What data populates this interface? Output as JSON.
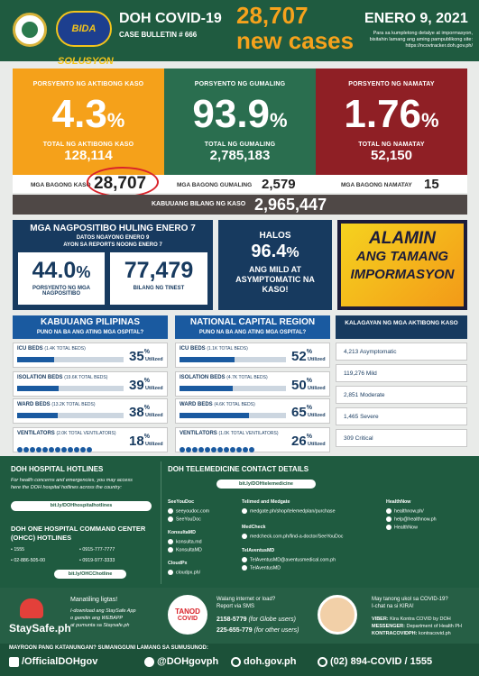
{
  "header": {
    "title": "DOH COVID-19",
    "bulletin": "CASE BULLETIN # 666",
    "new_cases_count": "28,707",
    "new_cases_label": "new cases",
    "date": "ENERO 9, 2021",
    "note1": "Para sa kumpletong detalye at impormasyon,",
    "note2": "bisitahin lamang ang aming pampublikong site:",
    "url": "https://ncovtracker.doh.gov.ph/",
    "bida_logo": "BIDA SOLUSYON"
  },
  "active": {
    "label": "PORSYENTO NG AKTIBONG KASO",
    "percent": "4.3",
    "pct_sign": "%",
    "total_label": "TOTAL NG AKTIBONG KASO",
    "total": "128,114",
    "color": "#f5a11a"
  },
  "recovered": {
    "label": "PORSYENTO NG GUMALING",
    "percent": "93.9",
    "pct_sign": "%",
    "total_label": "TOTAL NG GUMALING",
    "total": "2,785,183",
    "color": "#2a6e4f"
  },
  "deaths": {
    "label": "PORSYENTO NG NAMATAY",
    "percent": "1.76",
    "pct_sign": "%",
    "total_label": "TOTAL NG NAMATAY",
    "total": "52,150",
    "color": "#8f1f25"
  },
  "new_cases": {
    "label": "MGA BAGONG KASO",
    "value": "28,707"
  },
  "new_recovered": {
    "label": "MGA BAGONG GUMALING",
    "value": "2,579"
  },
  "new_deaths": {
    "label": "MGA BAGONG NAMATAY",
    "value": "15"
  },
  "total_cases": {
    "label": "KABUUANG BILANG NG KASO",
    "value": "2,965,447"
  },
  "positives": {
    "title": "MGA NAGPOSITIBO HULING ENERO 7",
    "sub1": "DATOS NGAYONG ENERO 9",
    "sub2": "AYON SA REPORTS NOONG ENERO 7",
    "rate": "44.0",
    "rate_sign": "%",
    "rate_label": "PORSYENTO NG MGA NAGPOSITIBO",
    "tests": "77,479",
    "tests_label": "BILANG NG TINEST"
  },
  "mild": {
    "halos": "HALOS",
    "pct": "96.4",
    "pct_sign": "%",
    "text": "ANG MILD AT ASYMPTOMATIC NA KASO!"
  },
  "alamin": {
    "line1": "ALAMIN",
    "line2": "ANG TAMANG",
    "line3": "IMPORMASYON"
  },
  "ph": {
    "title": "KABUUANG PILIPINAS",
    "sub": "PUNO NA BA ANG ATING MGA OSPITAL?",
    "rows": [
      {
        "label": "ICU BEDS",
        "total": "(1.4K TOTAL BEDS)",
        "pct": "35",
        "fill": 0.35
      },
      {
        "label": "ISOLATION BEDS",
        "total": "(19.6K TOTAL BEDS)",
        "pct": "39",
        "fill": 0.39
      },
      {
        "label": "WARD BEDS",
        "total": "(13.2K TOTAL BEDS)",
        "pct": "38",
        "fill": 0.38
      },
      {
        "label": "VENTILATORS",
        "total": "(2.0K TOTAL VENTILATORS)",
        "pct": "18",
        "fill": 0.18
      }
    ]
  },
  "ncr": {
    "title": "NATIONAL CAPITAL REGION",
    "sub": "PUNO NA BA ANG ATING MGA OSPITAL?",
    "rows": [
      {
        "label": "ICU BEDS",
        "total": "(1.1K TOTAL BEDS)",
        "pct": "52",
        "fill": 0.52
      },
      {
        "label": "ISOLATION BEDS",
        "total": "(4.7K TOTAL BEDS)",
        "pct": "50",
        "fill": 0.5
      },
      {
        "label": "WARD BEDS",
        "total": "(4.6K TOTAL BEDS)",
        "pct": "65",
        "fill": 0.65
      },
      {
        "label": "VENTILATORS",
        "total": "(1.0K TOTAL VENTILATORS)",
        "pct": "26",
        "fill": 0.26
      }
    ]
  },
  "utilized": "Utilized",
  "pct_sign": "%",
  "kalagayan": {
    "title": "KALAGAYAN NG MGA AKTIBONG KASO",
    "items": [
      "4,213 Asymptomatic",
      "119,276 Mild",
      "2,851 Moderate",
      "1,465 Severe",
      "309 Critical"
    ]
  },
  "hotlines": {
    "title": "DOH HOSPITAL HOTLINES",
    "desc1": "For health concerns and emergencies, you may access",
    "desc2": "here the DOH hospital hotlines across the country:",
    "btn": "bit.ly/DOHhospitalhotlines",
    "ohcc_title": "DOH ONE HOSPITAL COMMAND CENTER",
    "ohcc_title2": "(OHCC) HOTLINES",
    "n1": "• 1555",
    "n2": "• 0915-777-7777",
    "n3": "• 02-886-505-00",
    "n4": "• 0919-977-3333",
    "btn2": "bit.ly/OHCChotline"
  },
  "tele": {
    "title": "DOH TELEMEDICINE CONTACT DETAILS",
    "btn": "bit.ly/DOHtelemedicine",
    "seeyoudoc": {
      "name": "SeeYouDoc",
      "l1": "seeyoudoc.com",
      "l2": "SeeYouDoc"
    },
    "konsulta": {
      "name": "KonsultaMD",
      "l1": "konsulta.md",
      "l2": "KonsultaMD"
    },
    "cloudpx": {
      "name": "CloudPx",
      "l1": "cloudpx.ph/"
    },
    "telimed": {
      "name": "Telimed and Medgate",
      "l1": "medgate.ph/shop/telemedplan/purchase"
    },
    "medcheck": {
      "name": "MedCheck",
      "l1": "medcheck.com.ph/find-a-doctor/SeeYouDoc"
    },
    "teladventus": {
      "name": "TelAventusMD",
      "l1": "TelAventusMD@aventusmedical.com.ph",
      "l2": "TelAventusMD"
    },
    "healthnow": {
      "name": "HealthNow",
      "l1": "healthnow.ph/",
      "l2": "help@healthnow.ph",
      "l3": "HealthNow"
    }
  },
  "staysafe": {
    "logo": "StaySafe.ph",
    "t1": "Manatiling ligtas!",
    "t2": "I-download ang StaySafe App",
    "t3": "o gamitin ang WEBAPP",
    "t4": "at pumunta sa Staysafe.ph"
  },
  "tanod": {
    "logo1": "TANOD",
    "logo2": "COVID",
    "t1": "Walang internet or load?",
    "t2": "Report via SMS",
    "n1": "2158-5779",
    "n1b": "(for Globe users)",
    "n2": "225-655-779",
    "n2b": "(for other users)"
  },
  "kira": {
    "t1": "May tanong ukol sa COVID-19?",
    "t2": "I-chat na si KIRA!",
    "viber_lbl": "VIBER:",
    "viber": "Kira Kontra COVID by DOH",
    "mess_lbl": "MESSENGER:",
    "mess": "Department of Health PH",
    "kc_lbl": "KONTRACOVIDPH:",
    "kc": "kontracovid.ph"
  },
  "footer": {
    "top": "MAYROON PANG KATANUNGAN? SUMANGGUNI LAMANG SA SUMUSUNOD:",
    "fb": "/OfficialDOHgov",
    "tw": "@DOHgovph",
    "web": "doh.gov.ph",
    "phone": "(02) 894-COVID / 1555"
  }
}
